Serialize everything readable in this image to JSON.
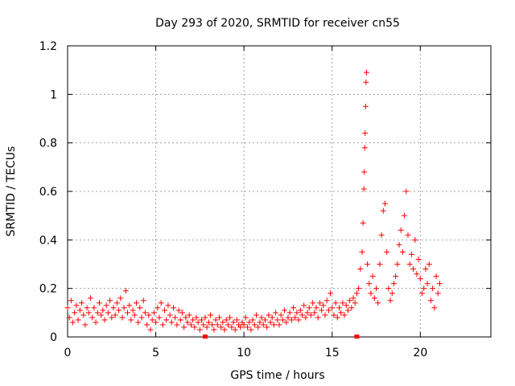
{
  "chart_data": {
    "type": "scatter",
    "title": "Day 293 of 2020, SRMTID for receiver cn55",
    "xlabel": "GPS time / hours",
    "ylabel": "SRMTID / TECUs",
    "xlim": [
      0,
      24
    ],
    "ylim": [
      0,
      1.2
    ],
    "x_ticks": [
      0,
      5,
      10,
      15,
      20
    ],
    "y_ticks": [
      0,
      0.2,
      0.4,
      0.6,
      0.8,
      1,
      1.2
    ],
    "x_tick_labels": [
      "0",
      "5",
      "10",
      "15",
      "20"
    ],
    "y_tick_labels": [
      "0",
      "0.2",
      "0.4",
      "0.6",
      "0.8",
      "1",
      "1.2"
    ],
    "grid": true,
    "marker": "+",
    "color": "#ff0000",
    "series": [
      {
        "name": "SRMTID",
        "points": [
          [
            0.0,
            0.12
          ],
          [
            0.1,
            0.08
          ],
          [
            0.2,
            0.15
          ],
          [
            0.3,
            0.06
          ],
          [
            0.4,
            0.1
          ],
          [
            0.5,
            0.13
          ],
          [
            0.6,
            0.07
          ],
          [
            0.7,
            0.11
          ],
          [
            0.8,
            0.14
          ],
          [
            0.9,
            0.09
          ],
          [
            1.0,
            0.05
          ],
          [
            1.1,
            0.12
          ],
          [
            1.2,
            0.1
          ],
          [
            1.3,
            0.16
          ],
          [
            1.4,
            0.08
          ],
          [
            1.5,
            0.12
          ],
          [
            1.6,
            0.06
          ],
          [
            1.7,
            0.1
          ],
          [
            1.8,
            0.14
          ],
          [
            1.9,
            0.09
          ],
          [
            2.0,
            0.11
          ],
          [
            2.1,
            0.07
          ],
          [
            2.2,
            0.13
          ],
          [
            2.3,
            0.1
          ],
          [
            2.4,
            0.15
          ],
          [
            2.5,
            0.08
          ],
          [
            2.6,
            0.12
          ],
          [
            2.7,
            0.09
          ],
          [
            2.8,
            0.14
          ],
          [
            2.9,
            0.11
          ],
          [
            3.0,
            0.16
          ],
          [
            3.1,
            0.08
          ],
          [
            3.2,
            0.12
          ],
          [
            3.3,
            0.19
          ],
          [
            3.4,
            0.1
          ],
          [
            3.5,
            0.13
          ],
          [
            3.6,
            0.07
          ],
          [
            3.7,
            0.11
          ],
          [
            3.8,
            0.09
          ],
          [
            3.9,
            0.14
          ],
          [
            4.0,
            0.06
          ],
          [
            4.1,
            0.12
          ],
          [
            4.2,
            0.08
          ],
          [
            4.3,
            0.15
          ],
          [
            4.4,
            0.1
          ],
          [
            4.5,
            0.05
          ],
          [
            4.6,
            0.09
          ],
          [
            4.7,
            0.03
          ],
          [
            4.8,
            0.07
          ],
          [
            4.9,
            0.1
          ],
          [
            5.0,
            0.06
          ],
          [
            5.1,
            0.12
          ],
          [
            5.2,
            0.08
          ],
          [
            5.3,
            0.14
          ],
          [
            5.4,
            0.05
          ],
          [
            5.5,
            0.11
          ],
          [
            5.6,
            0.07
          ],
          [
            5.7,
            0.13
          ],
          [
            5.8,
            0.09
          ],
          [
            5.9,
            0.06
          ],
          [
            6.0,
            0.12
          ],
          [
            6.1,
            0.08
          ],
          [
            6.2,
            0.05
          ],
          [
            6.3,
            0.11
          ],
          [
            6.4,
            0.07
          ],
          [
            6.5,
            0.1
          ],
          [
            6.6,
            0.04
          ],
          [
            6.7,
            0.08
          ],
          [
            6.8,
            0.06
          ],
          [
            6.9,
            0.09
          ],
          [
            7.0,
            0.05
          ],
          [
            7.1,
            0.07
          ],
          [
            7.2,
            0.04
          ],
          [
            7.3,
            0.08
          ],
          [
            7.4,
            0.06
          ],
          [
            7.5,
            0.03
          ],
          [
            7.6,
            0.07
          ],
          [
            7.7,
            0.05
          ],
          [
            7.8,
            0.08
          ],
          [
            7.9,
            0.04
          ],
          [
            8.0,
            0.06
          ],
          [
            8.1,
            0.09
          ],
          [
            8.2,
            0.05
          ],
          [
            8.3,
            0.03
          ],
          [
            8.4,
            0.07
          ],
          [
            8.5,
            0.05
          ],
          [
            8.6,
            0.08
          ],
          [
            8.7,
            0.04
          ],
          [
            8.8,
            0.06
          ],
          [
            8.9,
            0.03
          ],
          [
            9.0,
            0.07
          ],
          [
            9.1,
            0.05
          ],
          [
            9.2,
            0.08
          ],
          [
            9.3,
            0.04
          ],
          [
            9.4,
            0.06
          ],
          [
            9.5,
            0.03
          ],
          [
            9.6,
            0.07
          ],
          [
            9.7,
            0.05
          ],
          [
            9.8,
            0.04
          ],
          [
            9.9,
            0.06
          ],
          [
            10.0,
            0.05
          ],
          [
            10.1,
            0.08
          ],
          [
            10.2,
            0.04
          ],
          [
            10.3,
            0.06
          ],
          [
            10.4,
            0.03
          ],
          [
            10.5,
            0.07
          ],
          [
            10.6,
            0.05
          ],
          [
            10.7,
            0.09
          ],
          [
            10.8,
            0.04
          ],
          [
            10.9,
            0.06
          ],
          [
            11.0,
            0.08
          ],
          [
            11.1,
            0.05
          ],
          [
            11.2,
            0.07
          ],
          [
            11.3,
            0.04
          ],
          [
            11.4,
            0.09
          ],
          [
            11.5,
            0.06
          ],
          [
            11.6,
            0.08
          ],
          [
            11.7,
            0.05
          ],
          [
            11.8,
            0.1
          ],
          [
            11.9,
            0.07
          ],
          [
            12.0,
            0.05
          ],
          [
            12.1,
            0.09
          ],
          [
            12.2,
            0.07
          ],
          [
            12.3,
            0.11
          ],
          [
            12.4,
            0.06
          ],
          [
            12.5,
            0.08
          ],
          [
            12.6,
            0.1
          ],
          [
            12.7,
            0.07
          ],
          [
            12.8,
            0.12
          ],
          [
            12.9,
            0.08
          ],
          [
            13.0,
            0.1
          ],
          [
            13.1,
            0.07
          ],
          [
            13.2,
            0.11
          ],
          [
            13.3,
            0.09
          ],
          [
            13.4,
            0.13
          ],
          [
            13.5,
            0.08
          ],
          [
            13.6,
            0.1
          ],
          [
            13.7,
            0.12
          ],
          [
            13.8,
            0.09
          ],
          [
            13.9,
            0.14
          ],
          [
            14.0,
            0.1
          ],
          [
            14.1,
            0.12
          ],
          [
            14.2,
            0.08
          ],
          [
            14.3,
            0.14
          ],
          [
            14.4,
            0.11
          ],
          [
            14.5,
            0.13
          ],
          [
            14.6,
            0.09
          ],
          [
            14.7,
            0.15
          ],
          [
            14.8,
            0.11
          ],
          [
            14.9,
            0.18
          ],
          [
            15.0,
            0.12
          ],
          [
            15.1,
            0.09
          ],
          [
            15.2,
            0.14
          ],
          [
            15.3,
            0.08
          ],
          [
            15.4,
            0.12
          ],
          [
            15.5,
            0.1
          ],
          [
            15.6,
            0.14
          ],
          [
            15.7,
            0.09
          ],
          [
            15.8,
            0.13
          ],
          [
            15.9,
            0.11
          ],
          [
            16.0,
            0.15
          ],
          [
            16.1,
            0.12
          ],
          [
            16.2,
            0.16
          ],
          [
            16.3,
            0.14
          ],
          [
            16.4,
            0.18
          ],
          [
            16.5,
            0.2
          ],
          [
            16.6,
            0.28
          ],
          [
            16.7,
            0.35
          ],
          [
            16.75,
            0.47
          ],
          [
            16.8,
            0.61
          ],
          [
            16.82,
            0.68
          ],
          [
            16.85,
            0.78
          ],
          [
            16.87,
            0.84
          ],
          [
            16.9,
            0.95
          ],
          [
            16.92,
            1.05
          ],
          [
            16.95,
            1.09
          ],
          [
            17.0,
            0.3
          ],
          [
            17.1,
            0.22
          ],
          [
            17.2,
            0.18
          ],
          [
            17.3,
            0.25
          ],
          [
            17.4,
            0.16
          ],
          [
            17.5,
            0.2
          ],
          [
            17.6,
            0.14
          ],
          [
            17.7,
            0.3
          ],
          [
            17.8,
            0.42
          ],
          [
            17.9,
            0.52
          ],
          [
            18.0,
            0.55
          ],
          [
            18.1,
            0.35
          ],
          [
            18.2,
            0.2
          ],
          [
            18.3,
            0.15
          ],
          [
            18.4,
            0.18
          ],
          [
            18.5,
            0.22
          ],
          [
            18.6,
            0.25
          ],
          [
            18.7,
            0.3
          ],
          [
            18.8,
            0.38
          ],
          [
            18.9,
            0.44
          ],
          [
            19.0,
            0.35
          ],
          [
            19.1,
            0.5
          ],
          [
            19.2,
            0.6
          ],
          [
            19.3,
            0.42
          ],
          [
            19.4,
            0.3
          ],
          [
            19.5,
            0.34
          ],
          [
            19.6,
            0.28
          ],
          [
            19.7,
            0.4
          ],
          [
            19.8,
            0.26
          ],
          [
            19.9,
            0.32
          ],
          [
            20.0,
            0.24
          ],
          [
            20.1,
            0.18
          ],
          [
            20.2,
            0.2
          ],
          [
            20.3,
            0.28
          ],
          [
            20.4,
            0.22
          ],
          [
            20.5,
            0.3
          ],
          [
            20.6,
            0.15
          ],
          [
            20.7,
            0.2
          ],
          [
            20.8,
            0.12
          ],
          [
            20.9,
            0.25
          ],
          [
            21.0,
            0.18
          ],
          [
            21.1,
            0.22
          ]
        ]
      }
    ],
    "xlabel_ticks_note": "",
    "bottom_markers": [
      7.8,
      16.4
    ]
  }
}
